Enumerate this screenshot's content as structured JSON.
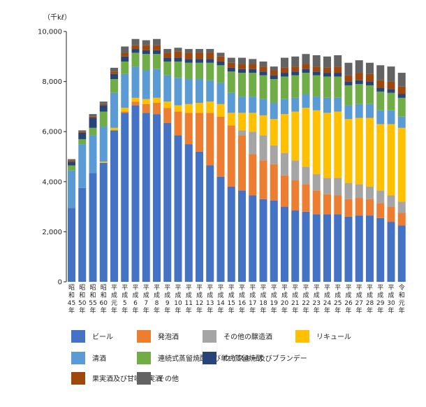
{
  "chart_data": {
    "type": "bar",
    "stacked": true,
    "unit_label": "（千kℓ）",
    "ylim": [
      0,
      10000
    ],
    "yticks": [
      0,
      2000,
      4000,
      6000,
      8000,
      10000
    ],
    "ytick_labels": [
      "0",
      "2,000",
      "4,000",
      "6,000",
      "8,000",
      "10,000"
    ],
    "grid": false,
    "categories": [
      "昭和45年",
      "昭和50年",
      "昭和55年",
      "昭和60年",
      "平成元年",
      "平成5年",
      "平成6年",
      "平成7年",
      "平成8年",
      "平成9年",
      "平成10年",
      "平成11年",
      "平成12年",
      "平成13年",
      "平成14年",
      "平成15年",
      "平成16年",
      "平成17年",
      "平成18年",
      "平成19年",
      "平成20年",
      "平成21年",
      "平成22年",
      "平成23年",
      "平成24年",
      "平成25年",
      "平成26年",
      "平成27年",
      "平成28年",
      "平成29年",
      "平成30年",
      "令和元年"
    ],
    "series": [
      {
        "name": "ビール",
        "color": "#4472c4",
        "values": [
          2950,
          3750,
          4350,
          4750,
          6050,
          6750,
          7050,
          6750,
          6700,
          6350,
          5850,
          5500,
          5200,
          4650,
          4200,
          3800,
          3650,
          3450,
          3300,
          3250,
          3000,
          2850,
          2800,
          2700,
          2700,
          2700,
          2600,
          2650,
          2650,
          2550,
          2400,
          2250
        ]
      },
      {
        "name": "発泡酒",
        "color": "#ed7d31",
        "values": [
          0,
          0,
          0,
          0,
          0,
          50,
          150,
          350,
          450,
          600,
          950,
          1250,
          1550,
          2100,
          2400,
          2450,
          2200,
          1650,
          1550,
          1450,
          1250,
          1200,
          1100,
          950,
          800,
          750,
          700,
          700,
          650,
          600,
          600,
          500
        ]
      },
      {
        "name": "その他の醸造酒",
        "color": "#a5a5a5",
        "values": [
          0,
          0,
          0,
          0,
          0,
          0,
          0,
          0,
          0,
          0,
          0,
          0,
          0,
          0,
          0,
          0,
          200,
          900,
          1000,
          750,
          900,
          800,
          700,
          650,
          650,
          700,
          650,
          550,
          500,
          500,
          450,
          450
        ]
      },
      {
        "name": "リキュール",
        "color": "#ffc000",
        "values": [
          0,
          0,
          0,
          50,
          100,
          150,
          150,
          200,
          200,
          250,
          250,
          350,
          400,
          450,
          500,
          500,
          700,
          750,
          800,
          1050,
          1550,
          1950,
          2350,
          2550,
          2600,
          2650,
          2550,
          2650,
          2750,
          2650,
          2850,
          2950
        ]
      },
      {
        "name": "清酒",
        "color": "#5b9bd5",
        "values": [
          1500,
          1750,
          1500,
          1400,
          1400,
          1350,
          1250,
          1150,
          1150,
          1050,
          1100,
          1000,
          950,
          850,
          850,
          800,
          650,
          650,
          650,
          650,
          600,
          550,
          550,
          550,
          600,
          550,
          550,
          550,
          550,
          550,
          550,
          450
        ]
      },
      {
        "name": "連続式蒸留焼酎及び単式蒸留焼酎",
        "color": "#70ad47",
        "values": [
          200,
          200,
          300,
          600,
          550,
          500,
          550,
          650,
          600,
          550,
          650,
          650,
          650,
          700,
          700,
          850,
          950,
          950,
          950,
          950,
          900,
          900,
          850,
          850,
          850,
          850,
          800,
          800,
          750,
          750,
          700,
          750
        ]
      },
      {
        "name": "ウイスキー及びブランデー",
        "color": "#264478",
        "values": [
          150,
          250,
          400,
          250,
          200,
          200,
          150,
          150,
          150,
          150,
          150,
          150,
          150,
          150,
          150,
          150,
          150,
          150,
          150,
          150,
          150,
          150,
          150,
          150,
          150,
          150,
          150,
          150,
          150,
          150,
          150,
          150
        ]
      },
      {
        "name": "果実酒及び甘味果実酒",
        "color": "#9e480e",
        "values": [
          50,
          50,
          50,
          50,
          100,
          150,
          150,
          200,
          200,
          200,
          250,
          250,
          250,
          250,
          200,
          200,
          200,
          200,
          200,
          200,
          200,
          200,
          200,
          200,
          200,
          250,
          250,
          300,
          300,
          300,
          300,
          300
        ]
      },
      {
        "name": "その他",
        "color": "#636363",
        "values": [
          50,
          50,
          100,
          100,
          150,
          250,
          250,
          200,
          250,
          150,
          150,
          150,
          150,
          150,
          150,
          200,
          250,
          200,
          200,
          150,
          400,
          400,
          400,
          450,
          450,
          450,
          500,
          500,
          450,
          600,
          600,
          550
        ]
      }
    ],
    "legend": {
      "placement": "bottom",
      "rows": [
        [
          "ビール",
          "発泡酒",
          "その他の醸造酒",
          "リキュール"
        ],
        [
          "清酒",
          "連続式蒸留焼酎及び単式蒸留焼酎",
          "ウイスキー及びブランデー"
        ],
        [
          "果実酒及び甘味果実酒",
          "その他"
        ]
      ]
    }
  }
}
